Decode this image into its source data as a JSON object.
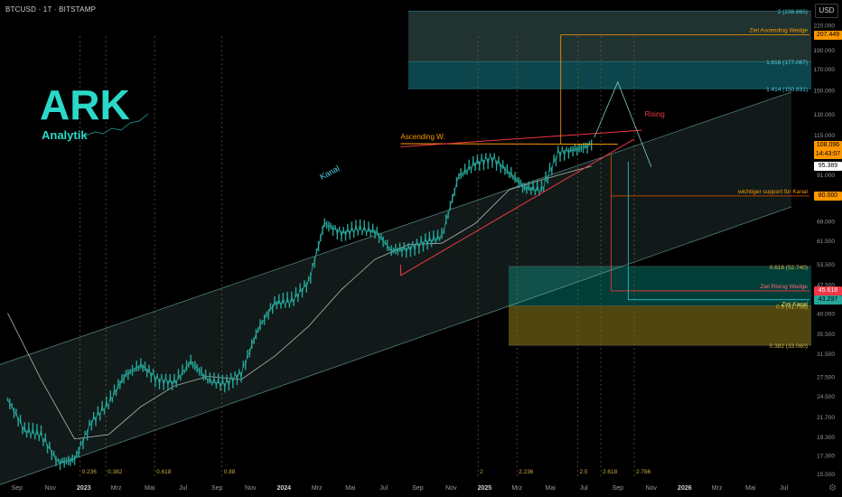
{
  "symbol": "BTCUSD · 1T · BITSTAMP",
  "currency": "USD",
  "brand": {
    "name": "ARK",
    "subtitle": "Analytik"
  },
  "colors": {
    "candle": "#26a69a",
    "ma": "#c8c8c8",
    "channel": "#80cbc4",
    "orange": "#ff9800",
    "red": "#f23645",
    "teal_zone": "#26c6da",
    "gold_zone": "#a08c1e"
  },
  "chart_data": {
    "type": "line",
    "scale": "log",
    "x_ticks": [
      "Sep",
      "Nov",
      "2023",
      "Mrz",
      "Mai",
      "Jul",
      "Sep",
      "Nov",
      "2024",
      "Mrz",
      "Mai",
      "Jul",
      "Sep",
      "Nov",
      "2025",
      "Mrz",
      "Mai",
      "Jul",
      "Sep",
      "Nov",
      "2026",
      "Mrz",
      "Mai",
      "Jul"
    ],
    "y_ticks": [
      15500,
      17300,
      19300,
      21700,
      24500,
      27500,
      31500,
      35500,
      40000,
      47500,
      53500,
      61500,
      69000,
      80000,
      91000,
      105000,
      115000,
      130000,
      150000,
      170000,
      190000,
      220000
    ],
    "ylim": [
      15000,
      255000
    ],
    "series": [
      {
        "x": [
          "2022-08-15",
          "2022-09-15",
          "2022-10-15",
          "2022-11-15",
          "2022-12-15",
          "2023-01-15",
          "2023-02-15",
          "2023-03-15",
          "2023-04-15",
          "2023-05-15",
          "2023-06-15",
          "2023-07-15",
          "2023-08-15",
          "2023-09-15",
          "2023-10-15",
          "2023-11-15",
          "2023-12-15",
          "2024-01-15",
          "2024-02-15",
          "2024-03-15",
          "2024-04-15",
          "2024-05-15",
          "2024-06-15",
          "2024-07-15",
          "2024-08-15",
          "2024-09-15",
          "2024-10-15",
          "2024-11-15",
          "2024-12-15",
          "2025-01-15",
          "2025-02-15",
          "2025-03-15",
          "2025-04-15",
          "2025-05-15",
          "2025-06-15",
          "2025-07-15"
        ],
        "values": [
          24000,
          20000,
          19500,
          16500,
          16800,
          21000,
          23500,
          27500,
          29500,
          27000,
          26500,
          30000,
          27000,
          26300,
          28000,
          36500,
          42500,
          43000,
          48000,
          68000,
          64000,
          66000,
          65000,
          58000,
          58500,
          61000,
          63000,
          90000,
          97000,
          100000,
          92000,
          84000,
          83000,
          103000,
          105000,
          108096
        ]
      },
      {
        "x": [
          "2022-08-15",
          "2022-10-15",
          "2022-12-15",
          "2023-02-15",
          "2023-04-15",
          "2023-06-15",
          "2023-08-15",
          "2023-10-15",
          "2023-12-15",
          "2024-02-15",
          "2024-04-15",
          "2024-06-15",
          "2024-08-15",
          "2024-10-15",
          "2024-12-15",
          "2025-02-15",
          "2025-04-15",
          "2025-06-15",
          "2025-07-15"
        ],
        "values": [
          40000,
          27000,
          19000,
          19500,
          23000,
          26000,
          27500,
          27000,
          31000,
          37000,
          46000,
          55000,
          60000,
          60500,
          68000,
          83000,
          88000,
          93000,
          95389
        ]
      }
    ],
    "channel": {
      "upper": [
        [
          "2022-08-01",
          29500
        ],
        [
          "2026-07-15",
          148000
        ]
      ],
      "lower": [
        [
          "2022-08-01",
          14500
        ],
        [
          "2026-07-15",
          75000
        ]
      ]
    },
    "rising_wedge": {
      "upper": [
        [
          "2024-08-01",
          107000
        ],
        [
          "2025-10-15",
          118000
        ]
      ],
      "lower": [
        [
          "2024-08-01",
          50000
        ],
        [
          "2025-10-01",
          112000
        ]
      ]
    },
    "ascending_resistance": [
      [
        "2024-08-01",
        109000
      ],
      [
        "2025-09-01",
        108600
      ]
    ],
    "projections": [
      {
        "label": "Ziel Ascending Wedge",
        "value": 207449
      },
      {
        "label": "wichtiger support für Kanal",
        "value": 80000
      },
      {
        "label": "Ziel Rising Wedge",
        "value": 45618
      },
      {
        "label": "Ziel Kanal",
        "value": 43297
      }
    ],
    "fib_levels": [
      {
        "label": "2 (238.865)",
        "value": 238865
      },
      {
        "label": "1.618 (177.087)",
        "value": 177087
      },
      {
        "label": "1.414 (150.831)",
        "value": 150831
      },
      {
        "label": "0.618 (52.740)",
        "value": 52740
      },
      {
        "label": "0.5 (41.756)",
        "value": 41756
      },
      {
        "label": "0.382 (33.060)",
        "value": 33060
      }
    ],
    "time_fibs": [
      {
        "label": "0.236",
        "x": "2022-12-25"
      },
      {
        "label": "0.382",
        "x": "2023-02-10"
      },
      {
        "label": "0.618",
        "x": "2023-05-10"
      },
      {
        "label": "0.88",
        "x": "2023-09-10"
      },
      {
        "label": "2",
        "x": "2024-12-20"
      },
      {
        "label": "2.236",
        "x": "2025-03-01"
      },
      {
        "label": "2.5",
        "x": "2025-06-20"
      },
      {
        "label": "2.618",
        "x": "2025-08-01"
      },
      {
        "label": "2.786",
        "x": "2025-10-01"
      }
    ],
    "annotations": [
      {
        "text": "Ascending W.",
        "x": "2024-08-01",
        "y": 112000
      },
      {
        "text": "Kanal",
        "x": "2024-03-10",
        "y": 88000
      },
      {
        "text": "Rising",
        "x": "2025-10-20",
        "y": 128000
      }
    ],
    "price_labels": [
      {
        "text": "108.096",
        "value": 108096,
        "sub": "14:43:07"
      },
      {
        "text": "95.389",
        "value": 95389
      },
      {
        "text": "207.449",
        "value": 207449
      },
      {
        "text": "80.000",
        "value": 80000
      },
      {
        "text": "45.618",
        "value": 45618
      },
      {
        "text": "43.297",
        "value": 43297
      }
    ]
  }
}
